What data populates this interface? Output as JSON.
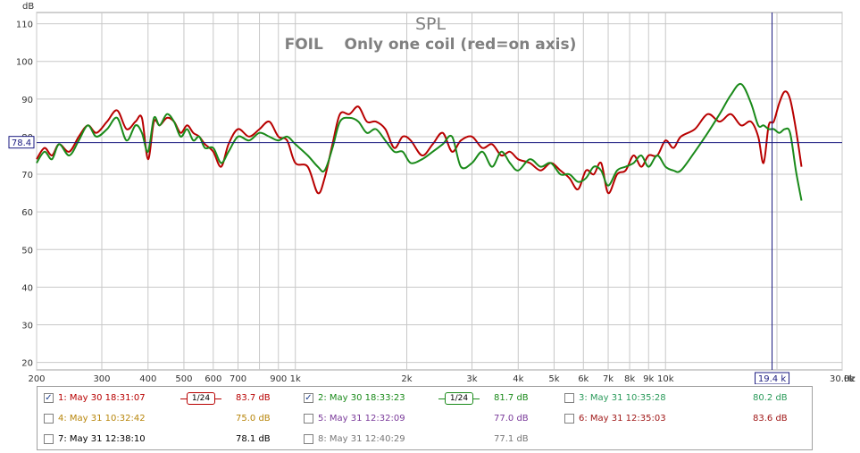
{
  "chart_data": {
    "type": "line",
    "title": "SPL",
    "subtitle": "FOIL    Only one coil (red=on axis)",
    "ylabel": "dB",
    "xlabel": "Hz",
    "x_scale": "log",
    "xlim": [
      200,
      30000
    ],
    "ylim": [
      18,
      113
    ],
    "grid": true,
    "y_ticks": [
      20,
      30,
      40,
      50,
      60,
      70,
      80,
      90,
      100,
      110
    ],
    "x_ticks": [
      {
        "value": 200,
        "label": "200"
      },
      {
        "value": 300,
        "label": "300"
      },
      {
        "value": 400,
        "label": "400"
      },
      {
        "value": 500,
        "label": "500"
      },
      {
        "value": 600,
        "label": "600"
      },
      {
        "value": 700,
        "label": "700"
      },
      {
        "value": 900,
        "label": "900"
      },
      {
        "value": 1000,
        "label": "1k"
      },
      {
        "value": 2000,
        "label": "2k"
      },
      {
        "value": 3000,
        "label": "3k"
      },
      {
        "value": 4000,
        "label": "4k"
      },
      {
        "value": 5000,
        "label": "5k"
      },
      {
        "value": 6000,
        "label": "6k"
      },
      {
        "value": 7000,
        "label": "7k"
      },
      {
        "value": 8000,
        "label": "8k"
      },
      {
        "value": 9000,
        "label": "9k"
      },
      {
        "value": 10000,
        "label": "10k"
      },
      {
        "value": 30000,
        "label": "30.0k"
      }
    ],
    "minor_x_ticks": [
      800,
      20000
    ],
    "cursor": {
      "x": 19400,
      "y": 78.4,
      "x_label": "19.4 k",
      "y_label": "78.4"
    },
    "series": [
      {
        "name": "1: May 30 18:31:07",
        "color": "#b80000",
        "x": [
          200,
          210,
          220,
          230,
          245,
          260,
          275,
          290,
          310,
          330,
          350,
          370,
          385,
          400,
          415,
          430,
          450,
          470,
          490,
          510,
          530,
          550,
          570,
          600,
          630,
          660,
          700,
          750,
          800,
          850,
          900,
          950,
          1000,
          1080,
          1150,
          1200,
          1260,
          1320,
          1400,
          1480,
          1560,
          1650,
          1750,
          1850,
          1950,
          2050,
          2200,
          2350,
          2500,
          2650,
          2800,
          3000,
          3200,
          3400,
          3600,
          3800,
          4000,
          4300,
          4600,
          4900,
          5200,
          5500,
          5800,
          6100,
          6400,
          6700,
          7000,
          7400,
          7800,
          8200,
          8600,
          9000,
          9500,
          10000,
          10500,
          11000,
          12000,
          13000,
          14000,
          15000,
          16000,
          17000,
          17800,
          18400,
          19000,
          19600,
          20300,
          21000,
          21700,
          22500,
          23300
        ],
        "y": [
          74,
          77,
          75,
          78,
          76,
          80,
          83,
          81,
          84,
          87,
          82,
          84,
          85,
          74,
          84,
          83,
          85,
          84,
          81,
          83,
          81,
          80,
          78,
          76,
          72,
          78,
          82,
          80,
          82,
          84,
          80,
          79,
          73,
          72,
          65,
          69,
          78,
          86,
          86,
          88,
          84,
          84,
          82,
          77,
          80,
          79,
          75,
          78,
          81,
          76,
          79,
          80,
          77,
          78,
          75,
          76,
          74,
          73,
          71,
          73,
          71,
          69,
          66,
          71,
          70,
          73,
          65,
          70,
          71,
          75,
          72,
          75,
          75,
          79,
          77,
          80,
          82,
          86,
          84,
          86,
          83,
          84,
          80,
          73,
          83,
          84,
          89,
          92,
          90,
          82,
          72
        ]
      },
      {
        "name": "2: May 30 18:33:23",
        "color": "#1a8a1a",
        "x": [
          200,
          210,
          220,
          230,
          245,
          260,
          275,
          290,
          310,
          330,
          350,
          370,
          385,
          400,
          415,
          430,
          450,
          470,
          490,
          510,
          530,
          550,
          570,
          600,
          630,
          660,
          700,
          750,
          800,
          850,
          900,
          950,
          1000,
          1080,
          1150,
          1200,
          1260,
          1320,
          1400,
          1480,
          1560,
          1650,
          1750,
          1850,
          1950,
          2050,
          2200,
          2350,
          2500,
          2650,
          2800,
          3000,
          3200,
          3400,
          3600,
          3800,
          4000,
          4300,
          4600,
          4900,
          5200,
          5500,
          5800,
          6100,
          6400,
          6700,
          7000,
          7400,
          7800,
          8200,
          8600,
          9000,
          9500,
          10000,
          10500,
          11000,
          12000,
          13000,
          14000,
          15000,
          16000,
          17000,
          17800,
          18400,
          19000,
          19600,
          20300,
          21000,
          21700,
          22500,
          23300
        ],
        "y": [
          73,
          76,
          74,
          78,
          75,
          79,
          83,
          80,
          82,
          85,
          79,
          83,
          81,
          76,
          85,
          83,
          86,
          84,
          80,
          82,
          79,
          80,
          77,
          77,
          73,
          76,
          80,
          79,
          81,
          80,
          79,
          80,
          78,
          75,
          72,
          71,
          77,
          84,
          85,
          84,
          81,
          82,
          79,
          76,
          76,
          73,
          74,
          76,
          78,
          80,
          72,
          73,
          76,
          72,
          76,
          73,
          71,
          74,
          72,
          73,
          70,
          70,
          68,
          69,
          72,
          71,
          67,
          71,
          72,
          73,
          75,
          72,
          75,
          72,
          71,
          71,
          76,
          81,
          86,
          91,
          94,
          89,
          83,
          83,
          82,
          82,
          81,
          82,
          81,
          71,
          63
        ]
      }
    ]
  },
  "legend": {
    "items": [
      {
        "label": "1: May 30 18:31:07",
        "value": "83.7 dB",
        "checked": true,
        "check_mark": "✓",
        "color": "#b80000",
        "smoothing": "1/24"
      },
      {
        "label": "2: May 30 18:33:23",
        "value": "81.7 dB",
        "checked": true,
        "check_mark": "✓",
        "color": "#1a8a1a",
        "smoothing": "1/24"
      },
      {
        "label": "3: May 31 10:35:28",
        "value": "80.2 dB",
        "checked": false,
        "check_mark": "",
        "color": "#2a9a5a"
      },
      {
        "label": "4: May 31 10:32:42",
        "value": "75.0 dB",
        "checked": false,
        "check_mark": "",
        "color": "#b8860b"
      },
      {
        "label": "5: May 31 12:32:09",
        "value": "77.0 dB",
        "checked": false,
        "check_mark": "",
        "color": "#7a3a9a"
      },
      {
        "label": "6: May 31 12:35:03",
        "value": "83.6 dB",
        "checked": false,
        "check_mark": "",
        "color": "#a01818"
      },
      {
        "label": "7: May 31 12:38:10",
        "value": "78.1 dB",
        "checked": false,
        "check_mark": "",
        "color": "#000000"
      },
      {
        "label": "8: May 31 12:40:29",
        "value": "77.1 dB",
        "checked": false,
        "check_mark": "",
        "color": "#777777"
      }
    ]
  },
  "colors": {
    "grid": "#c8c8c8",
    "axis_text": "#333333",
    "title": "#808080",
    "cursor": "#1a1a80",
    "border": "#a0a0a0"
  }
}
